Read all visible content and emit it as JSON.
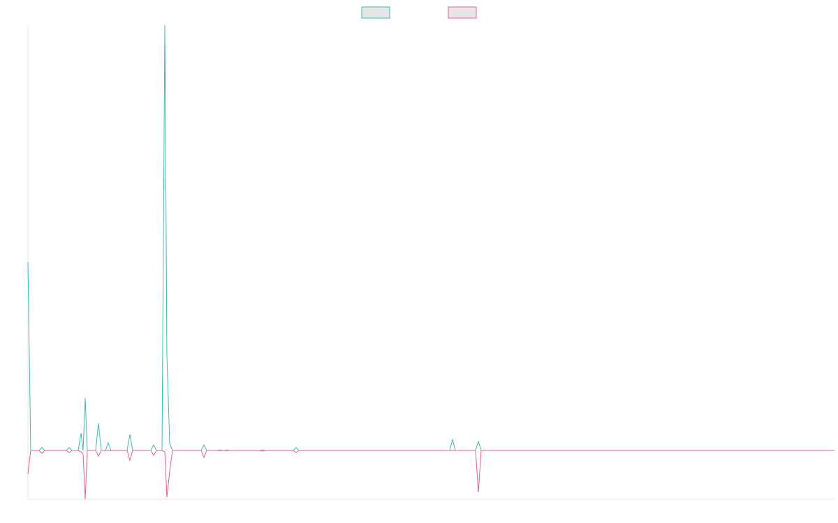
{
  "chart_data": {
    "type": "line",
    "x": [
      0,
      4,
      16,
      20,
      24,
      55,
      59,
      63,
      72,
      76,
      79,
      82,
      85,
      97,
      101,
      105,
      111,
      115,
      119,
      142,
      146,
      150,
      176,
      180,
      184,
      192,
      196,
      199,
      203,
      207,
      248,
      252,
      256,
      271,
      275,
      279,
      281,
      285,
      289,
      332,
      336,
      340,
      380,
      384,
      388,
      604,
      608,
      612,
      641,
      645,
      649,
      1155
    ],
    "series": [
      {
        "color": "#3fb8b3",
        "values": [
          270,
          0,
          0,
          4,
          0,
          0,
          4,
          0,
          0,
          25,
          0,
          75,
          0,
          0,
          39,
          0,
          0,
          11,
          0,
          0,
          23,
          0,
          0,
          8,
          0,
          0,
          610,
          136,
          10,
          0,
          0,
          8,
          0,
          0,
          1,
          0,
          0,
          1,
          0,
          0,
          1,
          0,
          0,
          4,
          0,
          0,
          16,
          0,
          0,
          13,
          0,
          0
        ]
      },
      {
        "color": "#ee5c84",
        "values": [
          -34,
          0,
          0,
          -4,
          0,
          0,
          -3,
          0,
          0,
          -2,
          -5,
          -70,
          0,
          0,
          -8,
          0,
          0,
          0,
          0,
          0,
          -14,
          0,
          0,
          -7,
          0,
          0,
          -2,
          -67,
          -30,
          0,
          0,
          -10,
          0,
          0,
          0,
          0,
          0,
          0,
          0,
          0,
          -1,
          0,
          0,
          -3,
          0,
          0,
          0,
          0,
          0,
          -60,
          0,
          0
        ]
      }
    ],
    "xlim": [
      0,
      1155
    ],
    "ylim": [
      -70,
      610
    ],
    "legend": "top"
  }
}
